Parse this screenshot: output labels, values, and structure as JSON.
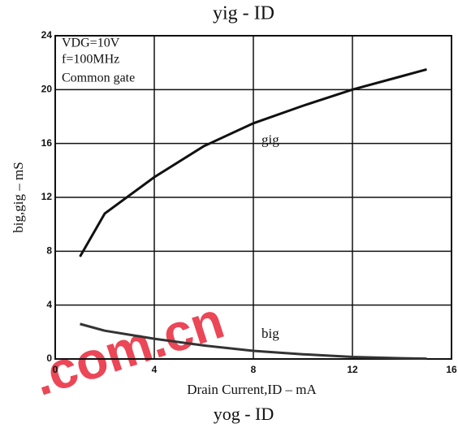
{
  "chart_data": {
    "type": "line",
    "title": "yig - ID",
    "next_title": "yog - ID",
    "xlabel": "Drain Current,ID – mA",
    "ylabel": "big,gig – mS",
    "annotations": [
      "VDG=10V",
      "f=100MHz",
      "Common gate"
    ],
    "watermark": ".com.cn",
    "x": [
      1,
      2,
      4,
      6,
      8,
      10,
      12,
      14,
      15
    ],
    "series": [
      {
        "name": "gig",
        "color": "#111111",
        "values": [
          7.6,
          10.8,
          13.5,
          15.8,
          17.5,
          18.8,
          20.0,
          21.0,
          21.5
        ]
      },
      {
        "name": "big",
        "color": "#333333",
        "values": [
          2.6,
          2.1,
          1.5,
          1.0,
          0.6,
          0.35,
          0.15,
          0.05,
          0.02
        ]
      }
    ],
    "xlim": [
      0,
      16
    ],
    "xticks": [
      0,
      4,
      8,
      12,
      16
    ],
    "ylim": [
      0,
      24
    ],
    "yticks": [
      0,
      4,
      8,
      12,
      16,
      20,
      24
    ],
    "grid": true
  }
}
